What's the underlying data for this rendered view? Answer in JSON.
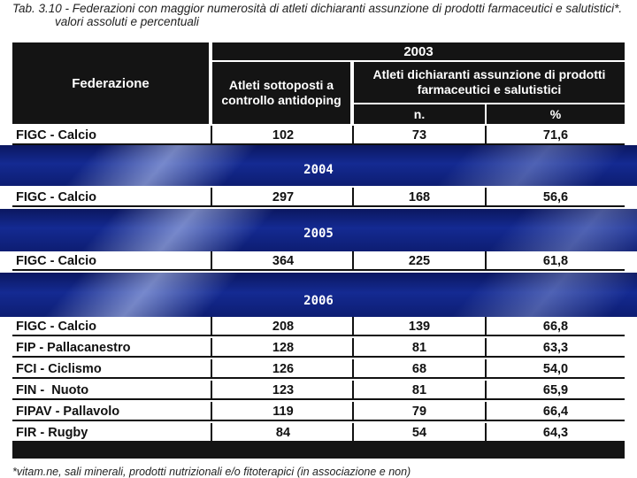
{
  "title": {
    "line1": "Tab. 3.10 - Federazioni con maggior numerosità di atleti dichiaranti assunzione di prodotti farmaceutici e salutistici*.",
    "line2": "valori assoluti e percentuali"
  },
  "header": {
    "year": "2003",
    "col_federazione": "Federazione",
    "col_controllo": "Atleti sottoposti a controllo antidoping",
    "col_dichiaranti": "Atleti dichiaranti assunzione di prodotti farmaceutici e salutistici",
    "col_n": "n.",
    "col_pct": "%"
  },
  "years": {
    "y2004": "2004",
    "y2005": "2005",
    "y2006": "2006"
  },
  "rows_2003": [
    {
      "fed": "FIGC - Calcio",
      "ctrl": "102",
      "n": "73",
      "pct": "71,6"
    }
  ],
  "rows_2004": [
    {
      "fed": "FIGC - Calcio",
      "ctrl": "297",
      "n": "168",
      "pct": "56,6"
    }
  ],
  "rows_2005": [
    {
      "fed": "FIGC - Calcio",
      "ctrl": "364",
      "n": "225",
      "pct": "61,8"
    }
  ],
  "rows_2006": [
    {
      "fed": "FIGC - Calcio",
      "ctrl": "208",
      "n": "139",
      "pct": "66,8"
    },
    {
      "fed": "FIP - Pallacanestro",
      "ctrl": "128",
      "n": "81",
      "pct": "63,3"
    },
    {
      "fed": "FCI - Ciclismo",
      "ctrl": "126",
      "n": "68",
      "pct": "54,0"
    },
    {
      "fed": "FIN -  Nuoto",
      "ctrl": "123",
      "n": "81",
      "pct": "65,9"
    },
    {
      "fed": "FIPAV - Pallavolo",
      "ctrl": "119",
      "n": "79",
      "pct": "66,4"
    },
    {
      "fed": "FIR - Rugby",
      "ctrl": "84",
      "n": "54",
      "pct": "64,3"
    }
  ],
  "footnote": "*vitam.ne, sali minerali, prodotti nutrizionali e/o fitoterapici (in associazione e non)",
  "colors": {
    "header_bg": "#141414",
    "band_bg": "#142a92",
    "text": "#111111"
  }
}
